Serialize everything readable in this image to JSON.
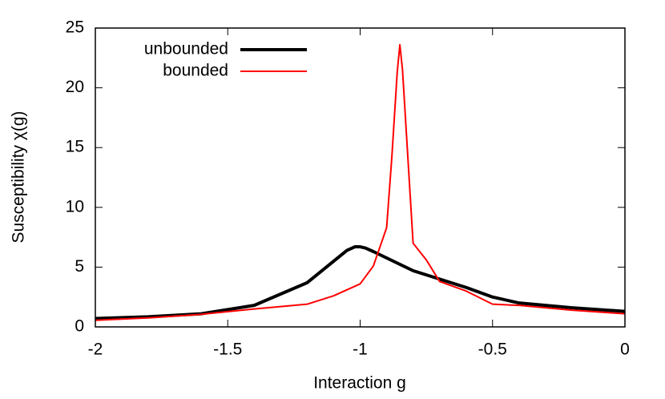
{
  "chart_data": {
    "type": "line",
    "x_label": "Interaction g",
    "y_label": "Susceptibility χ(g)",
    "xlim": [
      -2,
      0
    ],
    "xticks": [
      -2,
      -1.5,
      -1,
      -0.5,
      0
    ],
    "ylim": [
      0,
      25
    ],
    "yticks": [
      0,
      5,
      10,
      15,
      20,
      25
    ],
    "legend": "top-left",
    "series": [
      {
        "name": "unbounded",
        "color": "#000000",
        "x": [
          -2,
          -1.8,
          -1.6,
          -1.4,
          -1.2,
          -1.05,
          -1.02,
          -1.0,
          -0.98,
          -0.95,
          -0.8,
          -0.6,
          -0.5,
          -0.4,
          -0.2,
          0
        ],
        "values": [
          0.7,
          0.85,
          1.1,
          1.8,
          3.7,
          6.4,
          6.7,
          6.7,
          6.6,
          6.3,
          4.7,
          3.3,
          2.5,
          2.0,
          1.6,
          1.3
        ]
      },
      {
        "name": "bounded",
        "color": "#ff0000",
        "x": [
          -2,
          -1.8,
          -1.6,
          -1.4,
          -1.2,
          -1.1,
          -1.0,
          -0.95,
          -0.9,
          -0.88,
          -0.86,
          -0.85,
          -0.84,
          -0.8,
          -0.75,
          -0.7,
          -0.6,
          -0.5,
          -0.4,
          -0.2,
          0
        ],
        "values": [
          0.55,
          0.75,
          1.05,
          1.5,
          1.9,
          2.6,
          3.6,
          5.1,
          8.3,
          14.3,
          21.3,
          23.6,
          21.5,
          7.0,
          5.6,
          3.8,
          3.0,
          1.9,
          1.8,
          1.4,
          1.1
        ]
      }
    ]
  }
}
